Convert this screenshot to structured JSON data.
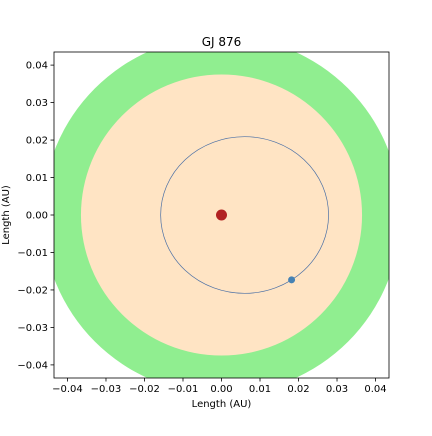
{
  "chart_data": {
    "type": "scatter",
    "title": "GJ 876",
    "xlabel": "Length (AU)",
    "ylabel": "Length (AU)",
    "xlim": [
      -0.0435,
      0.0435
    ],
    "ylim": [
      -0.0435,
      0.0435
    ],
    "xticks": [
      -0.04,
      -0.03,
      -0.02,
      -0.01,
      0.0,
      0.01,
      0.02,
      0.03,
      0.04
    ],
    "yticks": [
      -0.04,
      -0.03,
      -0.02,
      -0.01,
      0.0,
      0.01,
      0.02,
      0.03,
      0.04
    ],
    "xtick_labels": [
      "−0.04",
      "−0.03",
      "−0.02",
      "−0.01",
      "0.00",
      "0.01",
      "0.02",
      "0.03",
      "0.04"
    ],
    "ytick_labels": [
      "−0.04",
      "−0.03",
      "−0.02",
      "−0.01",
      "0.00",
      "0.01",
      "0.02",
      "0.03",
      "0.04"
    ],
    "grid": false,
    "zones": [
      {
        "shape": "circle",
        "center": [
          0.0,
          0.0
        ],
        "radius": 0.0465,
        "color": "#90ee90"
      },
      {
        "shape": "circle",
        "center": [
          0.0,
          0.0
        ],
        "radius": 0.0365,
        "color": "#ffe4c4"
      }
    ],
    "orbit": {
      "center": [
        0.006,
        0.0
      ],
      "rx": 0.0218,
      "ry": 0.0209,
      "color": "#4a6fa5"
    },
    "star": {
      "x": 0.0,
      "y": 0.0,
      "color": "#b22222"
    },
    "planet": {
      "x": 0.0182,
      "y": -0.0173,
      "color": "#4682b4"
    }
  }
}
